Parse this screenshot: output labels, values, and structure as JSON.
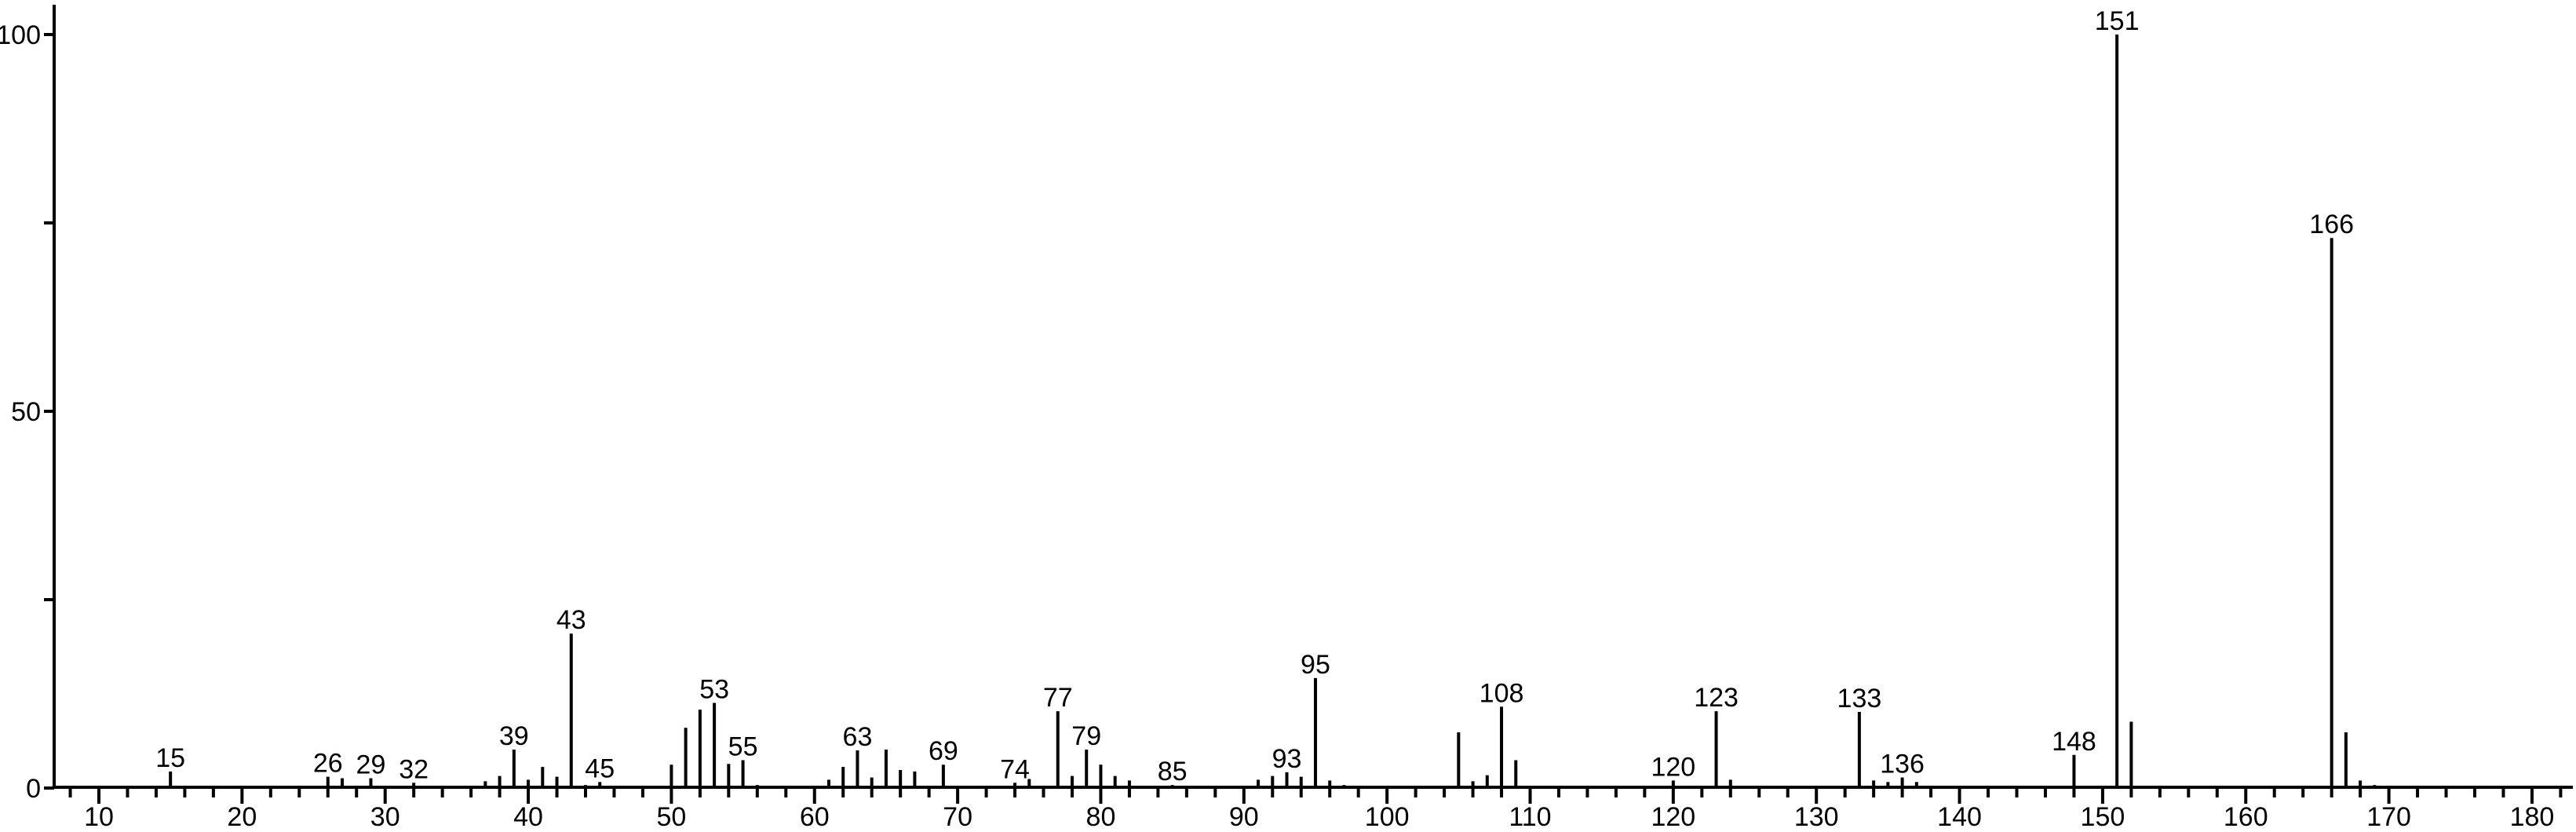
{
  "chart_data": {
    "type": "bar",
    "subtype": "mass-spectrum",
    "title": "",
    "xlabel": "",
    "ylabel": "",
    "grid": false,
    "legend": null,
    "colors": {
      "foreground": "#000000",
      "background": "#ffffff"
    },
    "x_axis": {
      "min": 7,
      "max": 183,
      "major_ticks": [
        10,
        20,
        30,
        40,
        50,
        60,
        70,
        80,
        90,
        100,
        110,
        120,
        130,
        140,
        150,
        160,
        170,
        180
      ],
      "major_tick_labels": [
        "10",
        "20",
        "30",
        "40",
        "50",
        "60",
        "70",
        "80",
        "90",
        "100",
        "110",
        "120",
        "130",
        "140",
        "150",
        "160",
        "170",
        "180"
      ],
      "minor_tick_start": 8,
      "minor_tick_end": 182,
      "minor_tick_step": 2
    },
    "y_axis": {
      "min": 0,
      "max": 100,
      "major_ticks": [
        0,
        50,
        100
      ],
      "major_tick_labels": [
        "0",
        "50",
        "100"
      ],
      "minor_ticks": [
        25,
        75
      ]
    },
    "peaks": [
      {
        "mz": 15,
        "intensity": 2.2,
        "labeled": true
      },
      {
        "mz": 26,
        "intensity": 1.5,
        "labeled": true
      },
      {
        "mz": 27,
        "intensity": 1.3,
        "labeled": false
      },
      {
        "mz": 29,
        "intensity": 1.3,
        "labeled": true
      },
      {
        "mz": 32,
        "intensity": 0.7,
        "labeled": true
      },
      {
        "mz": 36,
        "intensity": 0.3,
        "labeled": false
      },
      {
        "mz": 37,
        "intensity": 0.9,
        "labeled": false
      },
      {
        "mz": 38,
        "intensity": 1.6,
        "labeled": false
      },
      {
        "mz": 39,
        "intensity": 5.1,
        "labeled": true
      },
      {
        "mz": 40,
        "intensity": 1.1,
        "labeled": false
      },
      {
        "mz": 41,
        "intensity": 2.8,
        "labeled": false
      },
      {
        "mz": 42,
        "intensity": 1.5,
        "labeled": false
      },
      {
        "mz": 43,
        "intensity": 20.5,
        "labeled": true
      },
      {
        "mz": 44,
        "intensity": 0.4,
        "labeled": false
      },
      {
        "mz": 45,
        "intensity": 0.8,
        "labeled": true
      },
      {
        "mz": 46,
        "intensity": 0.3,
        "labeled": false
      },
      {
        "mz": 50,
        "intensity": 3.1,
        "labeled": false
      },
      {
        "mz": 51,
        "intensity": 8.0,
        "labeled": false
      },
      {
        "mz": 52,
        "intensity": 10.4,
        "labeled": false
      },
      {
        "mz": 53,
        "intensity": 11.3,
        "labeled": true
      },
      {
        "mz": 54,
        "intensity": 3.2,
        "labeled": false
      },
      {
        "mz": 55,
        "intensity": 3.7,
        "labeled": true
      },
      {
        "mz": 56,
        "intensity": 0.4,
        "labeled": false
      },
      {
        "mz": 58,
        "intensity": 0.3,
        "labeled": false
      },
      {
        "mz": 61,
        "intensity": 1.1,
        "labeled": false
      },
      {
        "mz": 62,
        "intensity": 2.8,
        "labeled": false
      },
      {
        "mz": 63,
        "intensity": 5.0,
        "labeled": true
      },
      {
        "mz": 64,
        "intensity": 1.4,
        "labeled": false
      },
      {
        "mz": 65,
        "intensity": 5.1,
        "labeled": false
      },
      {
        "mz": 66,
        "intensity": 2.4,
        "labeled": false
      },
      {
        "mz": 67,
        "intensity": 2.2,
        "labeled": false
      },
      {
        "mz": 68,
        "intensity": 0.3,
        "labeled": false
      },
      {
        "mz": 69,
        "intensity": 3.1,
        "labeled": true
      },
      {
        "mz": 74,
        "intensity": 0.7,
        "labeled": true
      },
      {
        "mz": 75,
        "intensity": 1.2,
        "labeled": false
      },
      {
        "mz": 77,
        "intensity": 10.2,
        "labeled": true
      },
      {
        "mz": 78,
        "intensity": 1.6,
        "labeled": false
      },
      {
        "mz": 79,
        "intensity": 5.1,
        "labeled": true
      },
      {
        "mz": 80,
        "intensity": 3.1,
        "labeled": false
      },
      {
        "mz": 81,
        "intensity": 1.6,
        "labeled": false
      },
      {
        "mz": 82,
        "intensity": 1.0,
        "labeled": false
      },
      {
        "mz": 85,
        "intensity": 0.4,
        "labeled": true
      },
      {
        "mz": 87,
        "intensity": 0.3,
        "labeled": false
      },
      {
        "mz": 91,
        "intensity": 1.1,
        "labeled": false
      },
      {
        "mz": 92,
        "intensity": 1.6,
        "labeled": false
      },
      {
        "mz": 93,
        "intensity": 2.1,
        "labeled": true
      },
      {
        "mz": 94,
        "intensity": 1.5,
        "labeled": false
      },
      {
        "mz": 95,
        "intensity": 14.6,
        "labeled": true
      },
      {
        "mz": 96,
        "intensity": 1.0,
        "labeled": false
      },
      {
        "mz": 97,
        "intensity": 0.4,
        "labeled": false
      },
      {
        "mz": 105,
        "intensity": 7.4,
        "labeled": false
      },
      {
        "mz": 106,
        "intensity": 0.9,
        "labeled": false
      },
      {
        "mz": 107,
        "intensity": 1.7,
        "labeled": false
      },
      {
        "mz": 108,
        "intensity": 10.8,
        "labeled": true
      },
      {
        "mz": 109,
        "intensity": 3.7,
        "labeled": false
      },
      {
        "mz": 120,
        "intensity": 1.0,
        "labeled": true
      },
      {
        "mz": 123,
        "intensity": 10.2,
        "labeled": true
      },
      {
        "mz": 124,
        "intensity": 1.1,
        "labeled": false
      },
      {
        "mz": 133,
        "intensity": 10.1,
        "labeled": true
      },
      {
        "mz": 134,
        "intensity": 1.0,
        "labeled": false
      },
      {
        "mz": 135,
        "intensity": 0.8,
        "labeled": false
      },
      {
        "mz": 136,
        "intensity": 1.4,
        "labeled": true
      },
      {
        "mz": 137,
        "intensity": 0.8,
        "labeled": false
      },
      {
        "mz": 148,
        "intensity": 4.4,
        "labeled": true
      },
      {
        "mz": 151,
        "intensity": 100,
        "labeled": true
      },
      {
        "mz": 152,
        "intensity": 8.8,
        "labeled": false
      },
      {
        "mz": 166,
        "intensity": 73,
        "labeled": true
      },
      {
        "mz": 167,
        "intensity": 7.4,
        "labeled": false
      },
      {
        "mz": 168,
        "intensity": 1.0,
        "labeled": false
      },
      {
        "mz": 169,
        "intensity": 0.4,
        "labeled": false
      }
    ],
    "base_peak": {
      "mz": 151,
      "intensity": 100
    },
    "highest_mass_labeled_peak": {
      "mz": 166,
      "intensity": 73
    }
  }
}
